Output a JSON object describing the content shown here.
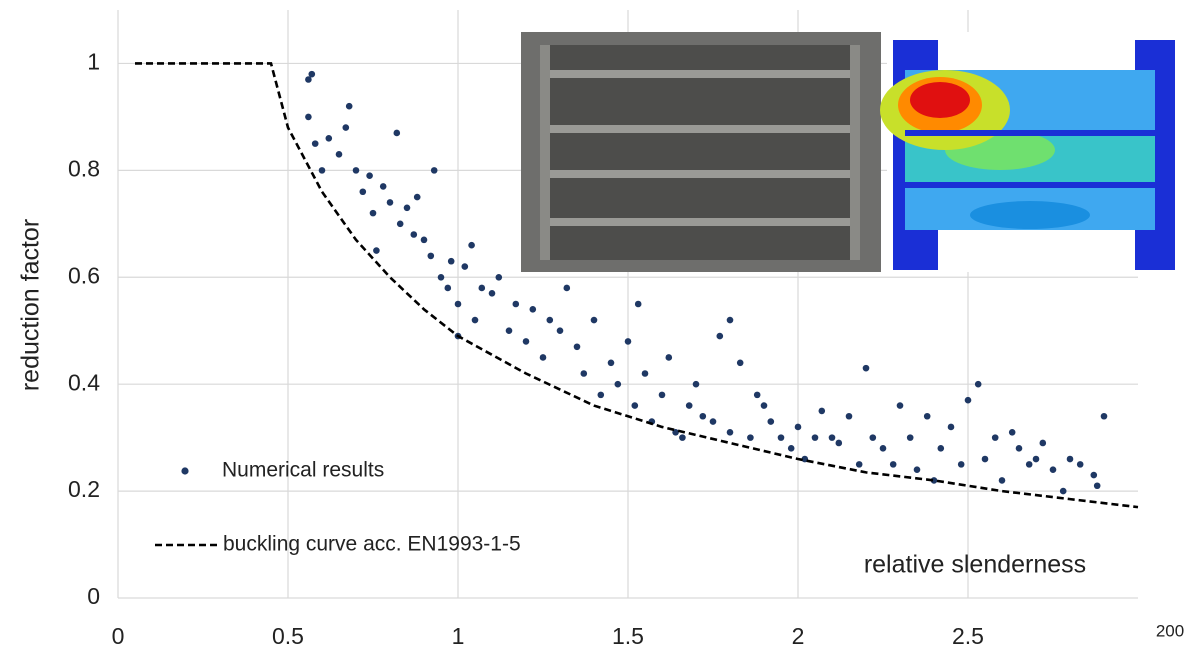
{
  "chart_data": {
    "type": "scatter",
    "y_label": "reduction factor",
    "x_label": "relative slenderness",
    "annotation": "200",
    "xlim": [
      0,
      3
    ],
    "ylim": [
      0,
      1.1
    ],
    "xticks": [
      0,
      0.5,
      1,
      1.5,
      2,
      2.5
    ],
    "yticks": [
      0,
      0.2,
      0.4,
      0.6,
      0.8,
      1
    ],
    "grid": true,
    "legend": "lower left",
    "series": [
      {
        "name": "Numerical results",
        "type": "scatter",
        "color": "#1f3864",
        "x": [
          0.56,
          0.57,
          0.56,
          0.58,
          0.6,
          0.62,
          0.65,
          0.67,
          0.68,
          0.7,
          0.72,
          0.74,
          0.75,
          0.76,
          0.78,
          0.8,
          0.82,
          0.83,
          0.85,
          0.87,
          0.88,
          0.9,
          0.92,
          0.93,
          0.95,
          0.97,
          0.98,
          1.0,
          1.0,
          1.02,
          1.04,
          1.05,
          1.07,
          1.1,
          1.12,
          1.15,
          1.17,
          1.2,
          1.22,
          1.25,
          1.27,
          1.3,
          1.32,
          1.35,
          1.37,
          1.4,
          1.42,
          1.45,
          1.47,
          1.5,
          1.52,
          1.53,
          1.55,
          1.57,
          1.6,
          1.62,
          1.64,
          1.66,
          1.68,
          1.7,
          1.72,
          1.75,
          1.77,
          1.8,
          1.8,
          1.83,
          1.86,
          1.88,
          1.9,
          1.92,
          1.95,
          1.98,
          2.0,
          2.02,
          2.05,
          2.07,
          2.1,
          2.12,
          2.15,
          2.18,
          2.2,
          2.22,
          2.25,
          2.28,
          2.3,
          2.33,
          2.35,
          2.38,
          2.4,
          2.42,
          2.45,
          2.48,
          2.5,
          2.53,
          2.55,
          2.58,
          2.6,
          2.63,
          2.65,
          2.68,
          2.7,
          2.72,
          2.75,
          2.78,
          2.8,
          2.83,
          2.87,
          2.88,
          2.9
        ],
        "values": [
          0.97,
          0.98,
          0.9,
          0.85,
          0.8,
          0.86,
          0.83,
          0.88,
          0.92,
          0.8,
          0.76,
          0.79,
          0.72,
          0.65,
          0.77,
          0.74,
          0.87,
          0.7,
          0.73,
          0.68,
          0.75,
          0.67,
          0.64,
          0.8,
          0.6,
          0.58,
          0.63,
          0.55,
          0.49,
          0.62,
          0.66,
          0.52,
          0.58,
          0.57,
          0.6,
          0.5,
          0.55,
          0.48,
          0.54,
          0.45,
          0.52,
          0.5,
          0.58,
          0.47,
          0.42,
          0.52,
          0.38,
          0.44,
          0.4,
          0.48,
          0.36,
          0.55,
          0.42,
          0.33,
          0.38,
          0.45,
          0.31,
          0.3,
          0.36,
          0.4,
          0.34,
          0.33,
          0.49,
          0.52,
          0.31,
          0.44,
          0.3,
          0.38,
          0.36,
          0.33,
          0.3,
          0.28,
          0.32,
          0.26,
          0.3,
          0.35,
          0.3,
          0.29,
          0.34,
          0.25,
          0.43,
          0.3,
          0.28,
          0.25,
          0.36,
          0.3,
          0.24,
          0.34,
          0.22,
          0.28,
          0.32,
          0.25,
          0.37,
          0.4,
          0.26,
          0.3,
          0.22,
          0.31,
          0.28,
          0.25,
          0.26,
          0.29,
          0.24,
          0.2,
          0.26,
          0.25,
          0.23,
          0.21,
          0.34
        ]
      },
      {
        "name": "buckling curve acc. EN1993-1-5",
        "type": "line",
        "color": "#000000",
        "dash": true,
        "x": [
          0.05,
          0.45,
          0.5,
          0.6,
          0.7,
          0.8,
          0.9,
          1,
          1.2,
          1.4,
          1.6,
          1.8,
          2,
          2.2,
          2.4,
          2.6,
          2.8,
          3
        ],
        "values": [
          1,
          1,
          0.88,
          0.76,
          0.67,
          0.6,
          0.54,
          0.49,
          0.42,
          0.36,
          0.32,
          0.29,
          0.26,
          0.235,
          0.22,
          0.2,
          0.185,
          0.17
        ]
      }
    ]
  }
}
